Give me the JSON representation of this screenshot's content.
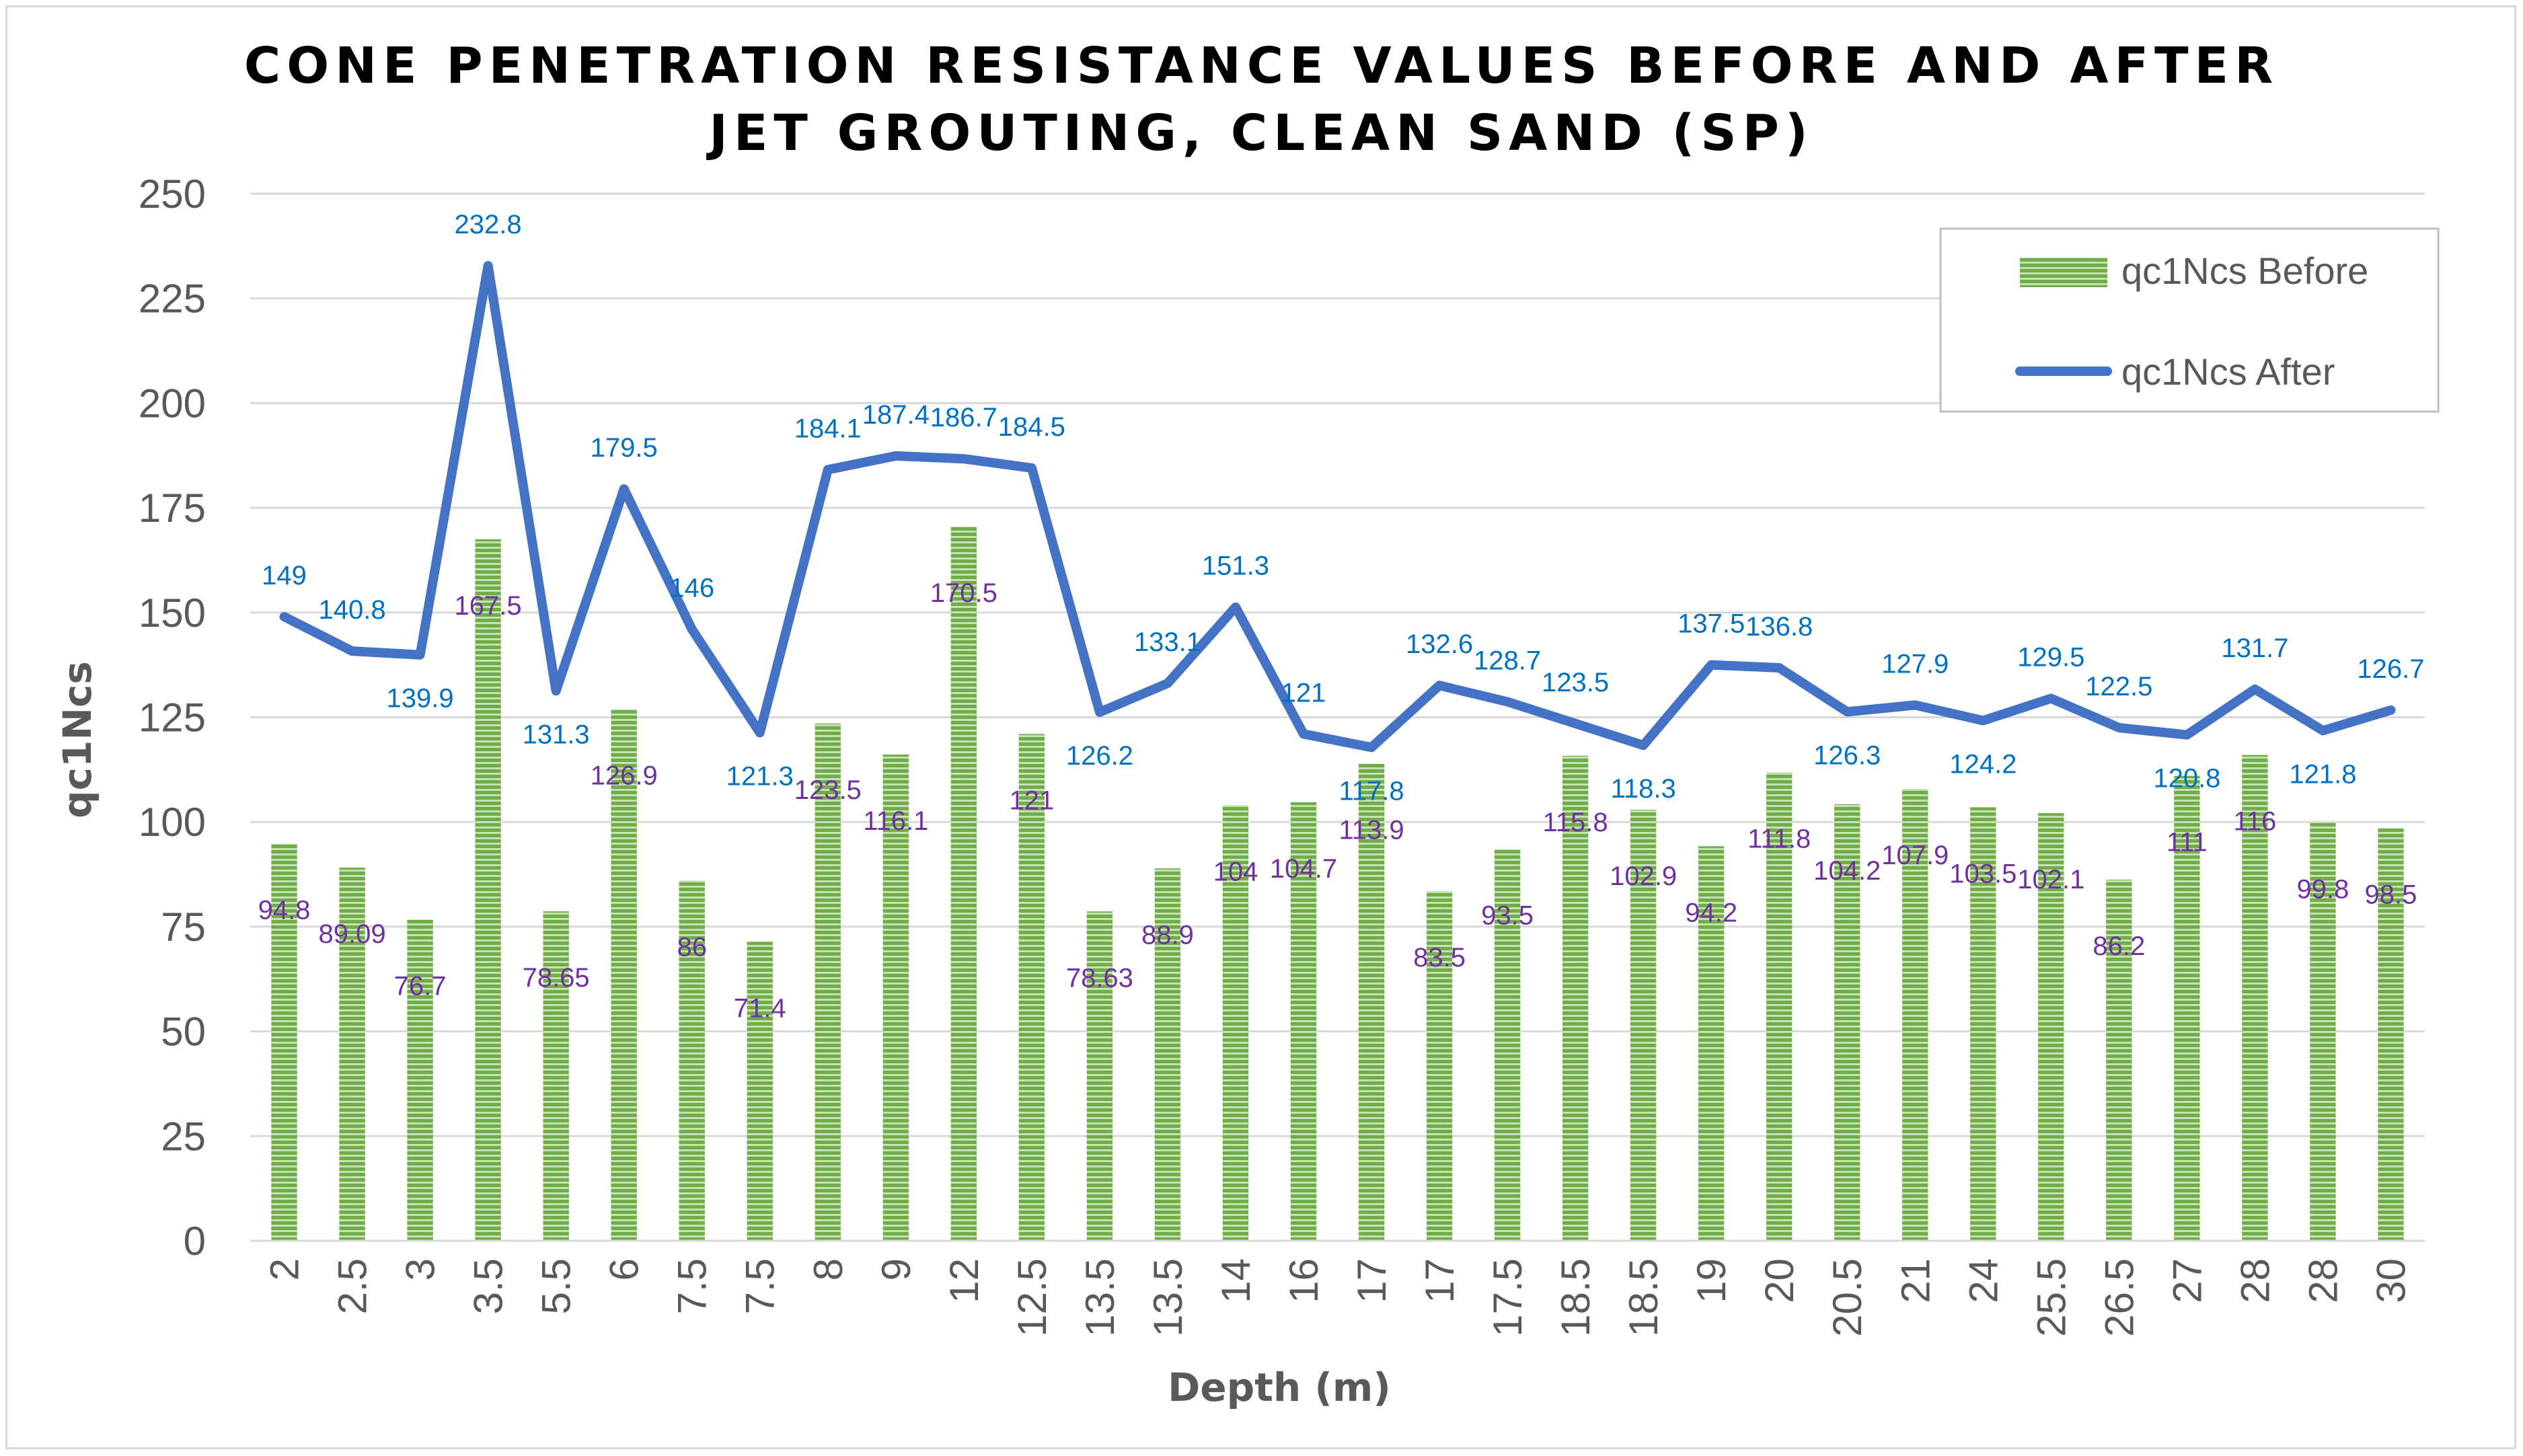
{
  "colors": {
    "bar_fill": "#70ad47",
    "bar_stripe": "#c5e0b4",
    "line": "#4472c4",
    "after_label": "#0070c0",
    "before_label": "#7030a0",
    "grid": "#d9d9d9",
    "axis_text": "#595959"
  },
  "chart_data": {
    "type": "bar",
    "title_lines": [
      "CONE PENETRATION RESISTANCE VALUES BEFORE AND AFTER",
      "JET GROUTING, CLEAN SAND (SP)"
    ],
    "xlabel": "Depth (m)",
    "ylabel": "qc1Ncs",
    "ylim": [
      0,
      250
    ],
    "yticks": [
      0,
      25,
      50,
      75,
      100,
      125,
      150,
      175,
      200,
      225,
      250
    ],
    "grid": true,
    "legend_position": "top-right",
    "categories": [
      "2",
      "2.5",
      "3",
      "3.5",
      "5.5",
      "6",
      "7.5",
      "7.5",
      "8",
      "9",
      "12",
      "12.5",
      "13.5",
      "13.5",
      "14",
      "16",
      "17",
      "17",
      "17.5",
      "18.5",
      "18.5",
      "19",
      "20",
      "20.5",
      "21",
      "24",
      "25.5",
      "26.5",
      "27",
      "28",
      "28",
      "30"
    ],
    "series": [
      {
        "name": "qc1Ncs Before",
        "type": "bar",
        "values": [
          94.8,
          89.09,
          76.7,
          167.5,
          78.65,
          126.9,
          86,
          71.4,
          123.5,
          116.1,
          170.5,
          121,
          78.63,
          88.9,
          104,
          104.7,
          113.9,
          83.5,
          93.5,
          115.8,
          102.9,
          94.2,
          111.8,
          104.2,
          107.9,
          103.5,
          102.1,
          86.2,
          111,
          116,
          99.8,
          98.5
        ],
        "labels": [
          "94.8",
          "89.09",
          "76.7",
          "167.5",
          "78.65",
          "126.9",
          "86",
          "71.4",
          "123.5",
          "116.1",
          "170.5",
          "121",
          "78.63",
          "88.9",
          "104",
          "104.7",
          "113.9",
          "83.5",
          "93.5",
          "115.8",
          "102.9",
          "94.2",
          "111.8",
          "104.2",
          "107.9",
          "103.5",
          "102.1",
          "86.2",
          "111",
          "116",
          "99.8",
          "98.5"
        ]
      },
      {
        "name": "qc1Ncs After",
        "type": "line",
        "values": [
          149,
          140.8,
          139.9,
          232.8,
          131.3,
          179.5,
          146,
          121.3,
          184.1,
          187.4,
          186.7,
          184.5,
          126.2,
          133.1,
          151.3,
          121,
          117.8,
          132.6,
          128.7,
          123.5,
          118.3,
          137.5,
          136.8,
          126.3,
          127.9,
          124.2,
          129.5,
          122.5,
          120.8,
          131.7,
          121.8,
          126.7
        ],
        "labels": [
          "149",
          "140.8",
          "139.9",
          "232.8",
          "131.3",
          "179.5",
          "146",
          "121.3",
          "184.1",
          "187.4",
          "186.7",
          "184.5",
          "126.2",
          "133.1",
          "151.3",
          "121",
          "117.8",
          "132.6",
          "128.7",
          "123.5",
          "118.3",
          "137.5",
          "136.8",
          "126.3",
          "127.9",
          "124.2",
          "129.5",
          "122.5",
          "120.8",
          "131.7",
          "121.8",
          "126.7"
        ]
      }
    ]
  }
}
